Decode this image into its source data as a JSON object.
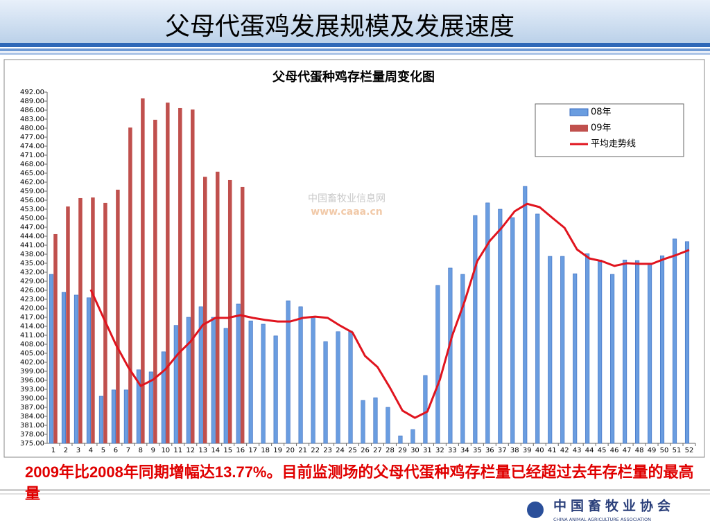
{
  "slide_title": "父母代蛋鸡发展规模及发展速度",
  "chart_data": {
    "type": "bar",
    "title": "父母代蛋种鸡存栏量周变化图",
    "categories": [
      "1",
      "2",
      "3",
      "4",
      "5",
      "6",
      "7",
      "8",
      "9",
      "10",
      "11",
      "12",
      "13",
      "14",
      "15",
      "16",
      "17",
      "18",
      "19",
      "20",
      "21",
      "22",
      "23",
      "24",
      "25",
      "26",
      "27",
      "28",
      "29",
      "30",
      "31",
      "32",
      "33",
      "34",
      "35",
      "36",
      "37",
      "38",
      "39",
      "40",
      "41",
      "42",
      "43",
      "44",
      "45",
      "46",
      "47",
      "48",
      "49",
      "50",
      "51",
      "52"
    ],
    "series": [
      {
        "name": "08年",
        "type": "bar",
        "color": "#6a9de0",
        "values": [
          431.3,
          425.3,
          424.4,
          423.5,
          390.7,
          392.8,
          392.8,
          399.5,
          398.8,
          405.5,
          414.3,
          417.0,
          420.5,
          417.0,
          413.3,
          421.4,
          415.8,
          414.7,
          410.8,
          422.5,
          420.5,
          417.2,
          408.9,
          412.2,
          412.4,
          389.3,
          390.2,
          387.0,
          377.5,
          379.6,
          397.6,
          427.6,
          433.4,
          431.3,
          450.9,
          455.1,
          453.0,
          450.2,
          460.6,
          451.4,
          437.3,
          437.3,
          431.5,
          438.2,
          436.1,
          431.3,
          436.1,
          435.9,
          434.8,
          437.5,
          443.1,
          442.2
        ]
      },
      {
        "name": "09年",
        "type": "bar",
        "color": "#c0504d",
        "values": [
          444.7,
          453.9,
          456.7,
          456.9,
          455.1,
          459.5,
          480.2,
          489.9,
          482.8,
          488.5,
          486.7,
          486.2,
          463.8,
          465.5,
          462.7,
          460.4,
          null,
          null,
          null,
          null,
          null,
          null,
          null,
          null,
          null,
          null,
          null,
          null,
          null,
          null,
          null,
          null,
          null,
          null,
          null,
          null,
          null,
          null,
          null,
          null,
          null,
          null,
          null,
          null,
          null,
          null,
          null,
          null,
          null,
          null,
          null,
          null
        ]
      },
      {
        "name": "平均走势线",
        "type": "line",
        "color": "#e0141e",
        "values": [
          null,
          null,
          null,
          426.2,
          417.0,
          408.0,
          400.4,
          394.1,
          396.2,
          399.7,
          404.8,
          408.9,
          414.5,
          416.8,
          416.8,
          417.7,
          416.8,
          416.1,
          415.6,
          415.6,
          416.8,
          417.2,
          416.8,
          414.2,
          411.9,
          404.1,
          400.4,
          393.5,
          385.9,
          383.5,
          385.6,
          396.2,
          411.0,
          422.5,
          435.7,
          442.4,
          447.0,
          452.3,
          454.8,
          453.7,
          450.2,
          446.8,
          439.6,
          436.6,
          435.7,
          434.1,
          435.0,
          434.8,
          434.8,
          436.4,
          437.8,
          439.4
        ]
      }
    ],
    "ylim": [
      375,
      492
    ],
    "yticks": [
      {
        "value": 375,
        "label": "375.00"
      },
      {
        "value": 378,
        "label": "378.00"
      },
      {
        "value": 381,
        "label": "381.00"
      },
      {
        "value": 384,
        "label": "384.00"
      },
      {
        "value": 387,
        "label": "387.00"
      },
      {
        "value": 390,
        "label": "390.00"
      },
      {
        "value": 393,
        "label": "393.00"
      },
      {
        "value": 396,
        "label": "396.00"
      },
      {
        "value": 399,
        "label": "399.00"
      },
      {
        "value": 402,
        "label": "402.00"
      },
      {
        "value": 405,
        "label": "405.00"
      },
      {
        "value": 408,
        "label": "408.00"
      },
      {
        "value": 411,
        "label": "411.00"
      },
      {
        "value": 414,
        "label": "414.00"
      },
      {
        "value": 417,
        "label": "417.00"
      },
      {
        "value": 420,
        "label": "420.00"
      },
      {
        "value": 423,
        "label": "423.00"
      },
      {
        "value": 426,
        "label": "426.00"
      },
      {
        "value": 429,
        "label": "429.00"
      },
      {
        "value": 432,
        "label": "432.00"
      },
      {
        "value": 435,
        "label": "435.00"
      },
      {
        "value": 438,
        "label": "438.00"
      },
      {
        "value": 441,
        "label": "441.00"
      },
      {
        "value": 444,
        "label": "444.00"
      },
      {
        "value": 447,
        "label": "447.00"
      },
      {
        "value": 450,
        "label": "450.00"
      },
      {
        "value": 453,
        "label": "453.00"
      },
      {
        "value": 456,
        "label": "456.00"
      },
      {
        "value": 459,
        "label": "459.00"
      },
      {
        "value": 462,
        "label": "462.00"
      },
      {
        "value": 465,
        "label": "465.00"
      },
      {
        "value": 468,
        "label": "468.00"
      },
      {
        "value": 471,
        "label": "471.00"
      },
      {
        "value": 474,
        "label": "474.00"
      },
      {
        "value": 477,
        "label": "477.00"
      },
      {
        "value": 480,
        "label": "480.00"
      },
      {
        "value": 483,
        "label": "483.00"
      },
      {
        "value": 486,
        "label": "486.00"
      },
      {
        "value": 489,
        "label": "489.00"
      },
      {
        "value": 492,
        "label": "492.00"
      }
    ],
    "grid": false,
    "legend": "upper right",
    "watermark": [
      "中国畜牧业信息网",
      "www.caaa.cn"
    ]
  },
  "footnote": "2009年比2008年同期增幅达13.77%。目前监测场的父母代蛋种鸡存栏量已经超过去年存栏量的最高量",
  "footer": {
    "org": "中国畜牧业协会",
    "org_en": "CHINA ANIMAL AGRICULTURE ASSOCIATION"
  }
}
